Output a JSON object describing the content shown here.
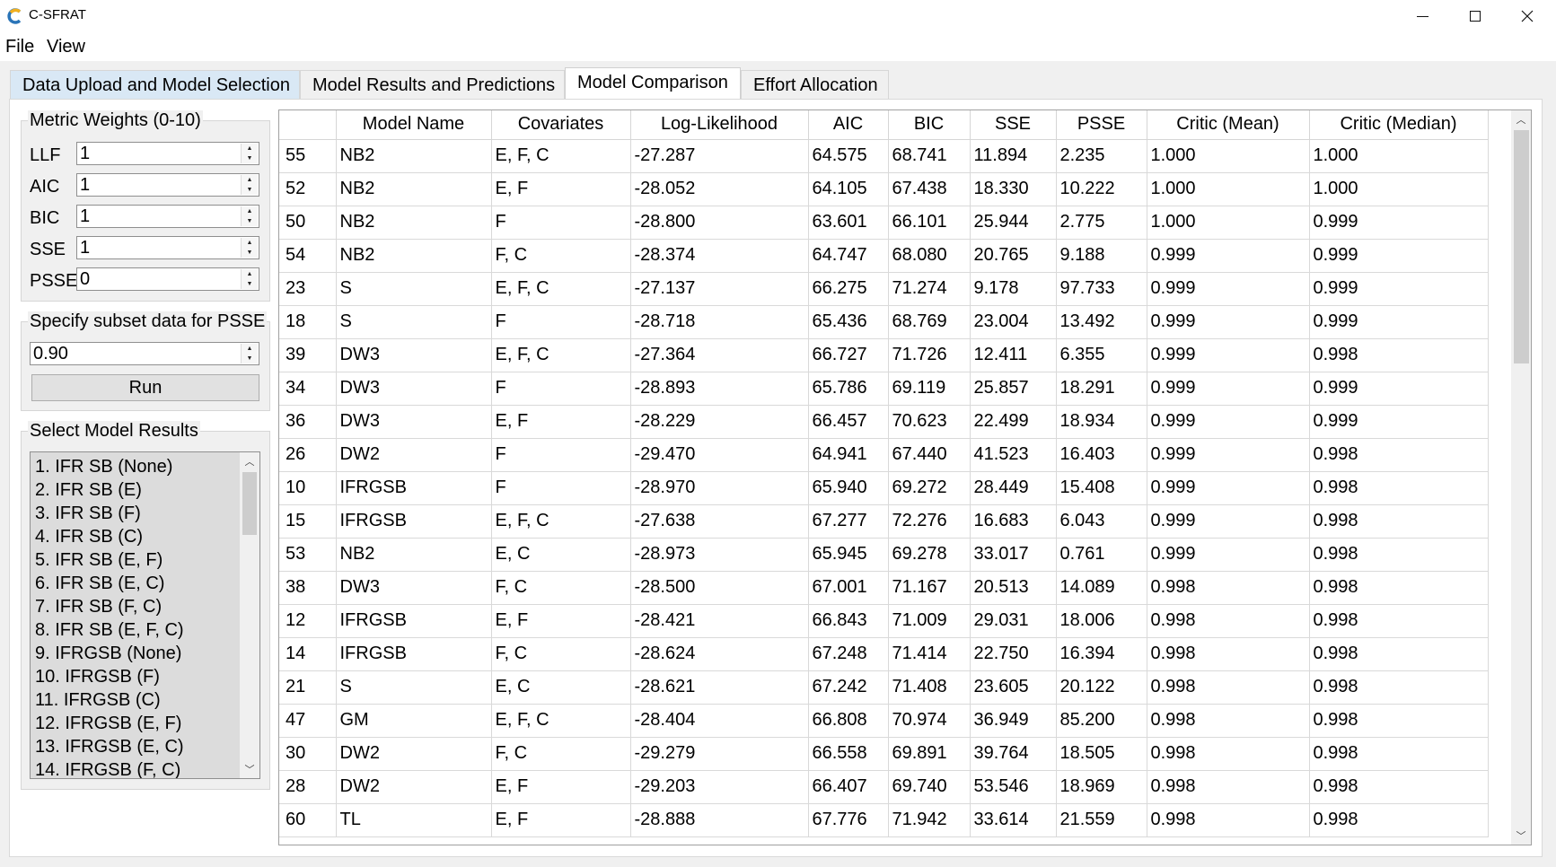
{
  "window": {
    "title": "C-SFRAT",
    "minimize_glyph": "—",
    "maximize_glyph": "☐",
    "close_glyph": "✕"
  },
  "menu": [
    "File",
    "View"
  ],
  "tabs": [
    {
      "label": "Data Upload and Model Selection"
    },
    {
      "label": "Model Results and Predictions"
    },
    {
      "label": "Model Comparison",
      "active": true
    },
    {
      "label": "Effort Allocation"
    }
  ],
  "metric_weights": {
    "title": "Metric Weights (0-10)",
    "fields": [
      {
        "label": "LLF",
        "value": "1"
      },
      {
        "label": "AIC",
        "value": "1"
      },
      {
        "label": "BIC",
        "value": "1"
      },
      {
        "label": "SSE",
        "value": "1"
      },
      {
        "label": "PSSE",
        "value": "0"
      }
    ]
  },
  "subset": {
    "title": "Specify subset data for PSSE",
    "value": "0.90",
    "run_label": "Run"
  },
  "model_results": {
    "title": "Select Model Results",
    "items": [
      "1. IFR SB (None)",
      "2. IFR SB (E)",
      "3. IFR SB (F)",
      "4. IFR SB (C)",
      "5. IFR SB (E, F)",
      "6. IFR SB (E, C)",
      "7. IFR SB (F, C)",
      "8. IFR SB (E, F, C)",
      "9. IFRGSB (None)",
      "10. IFRGSB (F)",
      "11. IFRGSB (C)",
      "12. IFRGSB (E, F)",
      "13. IFRGSB (E, C)",
      "14. IFRGSB (F, C)"
    ]
  },
  "comparison_table": {
    "columns": [
      "",
      "Model Name",
      "Covariates",
      "Log-Likelihood",
      "AIC",
      "BIC",
      "SSE",
      "PSSE",
      "Critic (Mean)",
      "Critic (Median)"
    ],
    "rows": [
      [
        "55",
        "NB2",
        "E, F, C",
        "-27.287",
        "64.575",
        "68.741",
        "11.894",
        "2.235",
        "1.000",
        "1.000"
      ],
      [
        "52",
        "NB2",
        "E, F",
        "-28.052",
        "64.105",
        "67.438",
        "18.330",
        "10.222",
        "1.000",
        "1.000"
      ],
      [
        "50",
        "NB2",
        "F",
        "-28.800",
        "63.601",
        "66.101",
        "25.944",
        "2.775",
        "1.000",
        "0.999"
      ],
      [
        "54",
        "NB2",
        "F, C",
        "-28.374",
        "64.747",
        "68.080",
        "20.765",
        "9.188",
        "0.999",
        "0.999"
      ],
      [
        "23",
        "S",
        "E, F, C",
        "-27.137",
        "66.275",
        "71.274",
        "9.178",
        "97.733",
        "0.999",
        "0.999"
      ],
      [
        "18",
        "S",
        "F",
        "-28.718",
        "65.436",
        "68.769",
        "23.004",
        "13.492",
        "0.999",
        "0.999"
      ],
      [
        "39",
        "DW3",
        "E, F, C",
        "-27.364",
        "66.727",
        "71.726",
        "12.411",
        "6.355",
        "0.999",
        "0.998"
      ],
      [
        "34",
        "DW3",
        "F",
        "-28.893",
        "65.786",
        "69.119",
        "25.857",
        "18.291",
        "0.999",
        "0.999"
      ],
      [
        "36",
        "DW3",
        "E, F",
        "-28.229",
        "66.457",
        "70.623",
        "22.499",
        "18.934",
        "0.999",
        "0.999"
      ],
      [
        "26",
        "DW2",
        "F",
        "-29.470",
        "64.941",
        "67.440",
        "41.523",
        "16.403",
        "0.999",
        "0.998"
      ],
      [
        "10",
        "IFRGSB",
        "F",
        "-28.970",
        "65.940",
        "69.272",
        "28.449",
        "15.408",
        "0.999",
        "0.998"
      ],
      [
        "15",
        "IFRGSB",
        "E, F, C",
        "-27.638",
        "67.277",
        "72.276",
        "16.683",
        "6.043",
        "0.999",
        "0.998"
      ],
      [
        "53",
        "NB2",
        "E, C",
        "-28.973",
        "65.945",
        "69.278",
        "33.017",
        "0.761",
        "0.999",
        "0.998"
      ],
      [
        "38",
        "DW3",
        "F, C",
        "-28.500",
        "67.001",
        "71.167",
        "20.513",
        "14.089",
        "0.998",
        "0.998"
      ],
      [
        "12",
        "IFRGSB",
        "E, F",
        "-28.421",
        "66.843",
        "71.009",
        "29.031",
        "18.006",
        "0.998",
        "0.998"
      ],
      [
        "14",
        "IFRGSB",
        "F, C",
        "-28.624",
        "67.248",
        "71.414",
        "22.750",
        "16.394",
        "0.998",
        "0.998"
      ],
      [
        "21",
        "S",
        "E, C",
        "-28.621",
        "67.242",
        "71.408",
        "23.605",
        "20.122",
        "0.998",
        "0.998"
      ],
      [
        "47",
        "GM",
        "E, F, C",
        "-28.404",
        "66.808",
        "70.974",
        "36.949",
        "85.200",
        "0.998",
        "0.998"
      ],
      [
        "30",
        "DW2",
        "F, C",
        "-29.279",
        "66.558",
        "69.891",
        "39.764",
        "18.505",
        "0.998",
        "0.998"
      ],
      [
        "28",
        "DW2",
        "E, F",
        "-29.203",
        "66.407",
        "69.740",
        "53.546",
        "18.969",
        "0.998",
        "0.998"
      ],
      [
        "60",
        "TL",
        "E, F",
        "-28.888",
        "67.776",
        "71.942",
        "33.614",
        "21.559",
        "0.998",
        "0.998"
      ]
    ]
  }
}
